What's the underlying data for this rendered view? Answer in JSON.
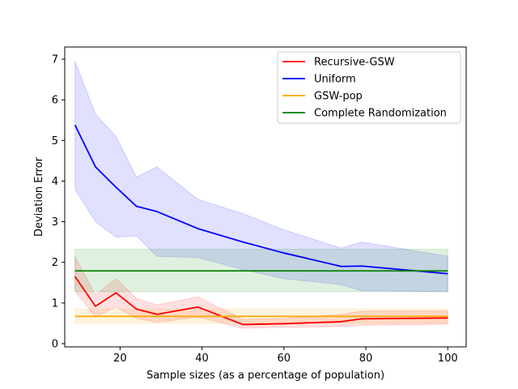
{
  "chart_data": {
    "type": "line",
    "title": "",
    "xlabel": "Sample sizes (as a percentage of population)",
    "ylabel": "Deviation Error",
    "xlim": [
      6.5,
      104.5
    ],
    "ylim": [
      -0.08,
      7.3
    ],
    "xticks": [
      20,
      40,
      60,
      80,
      100
    ],
    "yticks": [
      0,
      1,
      2,
      3,
      4,
      5,
      6,
      7
    ],
    "grid": false,
    "legend_position": "top-right",
    "series": [
      {
        "name": "Recursive-GSW",
        "color": "#ff0000",
        "x": [
          9,
          14,
          19,
          24,
          29,
          39,
          50,
          60,
          74,
          79,
          100
        ],
        "y": [
          1.65,
          0.92,
          1.25,
          0.85,
          0.72,
          0.9,
          0.47,
          0.49,
          0.54,
          0.61,
          0.63
        ],
        "lower": [
          1.3,
          0.65,
          0.9,
          0.62,
          0.52,
          0.65,
          0.38,
          0.4,
          0.42,
          0.45,
          0.48
        ],
        "upper": [
          2.15,
          1.2,
          1.6,
          1.12,
          0.95,
          1.15,
          0.6,
          0.62,
          0.72,
          0.8,
          0.8
        ]
      },
      {
        "name": "Uniform",
        "color": "#0000ff",
        "x": [
          9,
          14,
          19,
          24,
          29,
          39,
          50,
          60,
          74,
          79,
          100
        ],
        "y": [
          5.38,
          4.35,
          3.85,
          3.38,
          3.25,
          2.83,
          2.5,
          2.23,
          1.9,
          1.91,
          1.72
        ],
        "lower": [
          3.8,
          3.0,
          2.62,
          2.65,
          2.15,
          2.12,
          1.82,
          1.6,
          1.45,
          1.3,
          1.28
        ],
        "upper": [
          6.95,
          5.65,
          5.1,
          4.1,
          4.35,
          3.55,
          3.2,
          2.8,
          2.35,
          2.5,
          2.15
        ]
      },
      {
        "name": "GSW-pop",
        "color": "#ffa500",
        "x": [
          9,
          100
        ],
        "y": [
          0.67,
          0.67
        ],
        "lower": [
          0.5,
          0.5
        ],
        "upper": [
          0.85,
          0.85
        ]
      },
      {
        "name": "Complete Randomization",
        "color": "#008000",
        "x": [
          9,
          100
        ],
        "y": [
          1.79,
          1.79
        ],
        "lower": [
          1.28,
          1.28
        ],
        "upper": [
          2.32,
          2.32
        ]
      }
    ]
  }
}
